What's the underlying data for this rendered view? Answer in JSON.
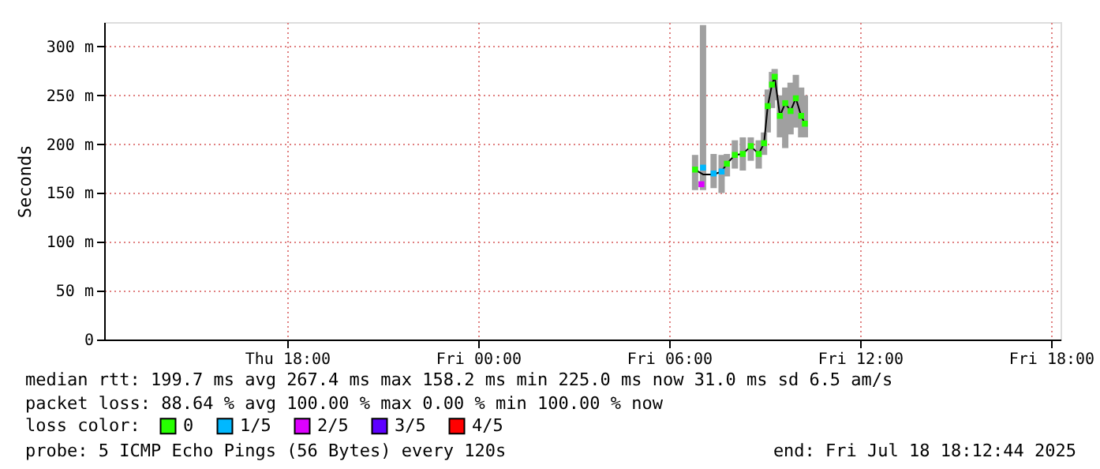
{
  "chart_data": {
    "type": "line",
    "ylabel": "Seconds",
    "legend_title": "loss color:",
    "legend": "bottom",
    "grid": true,
    "marker": "none",
    "line_style": "solid",
    "x": [
      "2025-07-18T06:49",
      "2025-07-18T07:04",
      "2025-07-18T07:24",
      "2025-07-18T07:39",
      "2025-07-18T07:49",
      "2025-07-18T08:04",
      "2025-07-18T08:19",
      "2025-07-18T08:34",
      "2025-07-18T08:49",
      "2025-07-18T08:59",
      "2025-07-18T09:06",
      "2025-07-18T09:14",
      "2025-07-18T09:19",
      "2025-07-18T09:29",
      "2025-07-18T09:39",
      "2025-07-18T09:49",
      "2025-07-18T09:59",
      "2025-07-18T10:09",
      "2025-07-18T10:16"
    ],
    "series": [
      {
        "color": "#000000",
        "values": [
          174,
          169,
          169,
          172,
          180,
          189,
          190,
          198,
          190,
          201,
          239,
          261,
          269,
          229,
          242,
          234,
          247,
          229,
          221
        ],
        "lower": [
          153,
          153,
          155,
          150,
          167,
          175,
          173,
          183,
          175,
          189,
          212,
          237,
          245,
          207,
          196,
          210,
          217,
          207,
          207
        ],
        "upper": [
          189,
          322,
          190,
          189,
          190,
          204,
          207,
          207,
          204,
          212,
          256,
          274,
          277,
          250,
          258,
          263,
          271,
          258,
          250
        ]
      },
      {
        "type": "scatter",
        "name": "0",
        "color": "#26ff00",
        "marker": "square",
        "x": [
          "2025-07-18T06:49",
          "2025-07-18T07:49",
          "2025-07-18T08:04",
          "2025-07-18T08:19",
          "2025-07-18T08:34",
          "2025-07-18T08:49",
          "2025-07-18T08:59",
          "2025-07-18T09:06",
          "2025-07-18T09:14",
          "2025-07-18T09:19",
          "2025-07-18T09:29",
          "2025-07-18T09:39",
          "2025-07-18T09:49",
          "2025-07-18T09:59",
          "2025-07-18T10:09",
          "2025-07-18T10:16"
        ],
        "values": [
          174,
          180,
          189,
          190,
          198,
          190,
          201,
          239,
          261,
          269,
          229,
          242,
          234,
          247,
          229,
          221
        ]
      },
      {
        "type": "scatter",
        "name": "1/5",
        "color": "#00b8ff",
        "marker": "square",
        "x": [
          "2025-07-18T07:04",
          "2025-07-18T07:24",
          "2025-07-18T07:39"
        ],
        "values": [
          176,
          170,
          172
        ]
      },
      {
        "type": "scatter",
        "name": "2/5",
        "color": "#dd00ff",
        "marker": "square",
        "x": [
          "2025-07-18T07:01"
        ],
        "values": [
          159
        ]
      },
      {
        "type": "scatter",
        "name": "3/5",
        "color": "#5e00ff",
        "marker": "square",
        "values": [
          null,
          null,
          null,
          null,
          null,
          null,
          null,
          null,
          null,
          null,
          null,
          null,
          null,
          null,
          null,
          null,
          null,
          null,
          null
        ]
      },
      {
        "type": "scatter",
        "name": "4/5",
        "color": "#ff0000",
        "marker": "square",
        "values": [
          null,
          null,
          null,
          null,
          null,
          null,
          null,
          null,
          null,
          null,
          null,
          null,
          null,
          null,
          null,
          null,
          null,
          null,
          null
        ]
      }
    ],
    "xlim": [
      "2025-07-17T12:15",
      "2025-07-18T18:18"
    ],
    "xticks": [
      {
        "value": "2025-07-17T18:00",
        "label": "Thu 18:00"
      },
      {
        "value": "2025-07-18T00:00",
        "label": "Fri 00:00"
      },
      {
        "value": "2025-07-18T06:00",
        "label": "Fri 06:00"
      },
      {
        "value": "2025-07-18T12:00",
        "label": "Fri 12:00"
      },
      {
        "value": "2025-07-18T18:00",
        "label": "Fri 18:00"
      }
    ],
    "ylim": [
      0,
      325
    ],
    "yticks": [
      0,
      {
        "value": 50,
        "label": "50 m"
      },
      {
        "value": 100,
        "label": "100 m"
      },
      {
        "value": 150,
        "label": "150 m"
      },
      {
        "value": 200,
        "label": "200 m"
      },
      {
        "value": 250,
        "label": "250 m"
      },
      {
        "value": 300,
        "label": "300 m"
      }
    ],
    "annotations": [
      "median rtt:  199.7 ms avg  267.4 ms max  158.2 ms min  225.0 ms now  31.0 ms sd  6.5   am/s",
      "packet loss: 88.64 % avg  100.00 % max  0.00 % min  100.00 % now",
      "probe:       5 ICMP Echo Pings (56 Bytes) every 120s",
      "end: Fri Jul 18 18:12:44 2025"
    ]
  }
}
